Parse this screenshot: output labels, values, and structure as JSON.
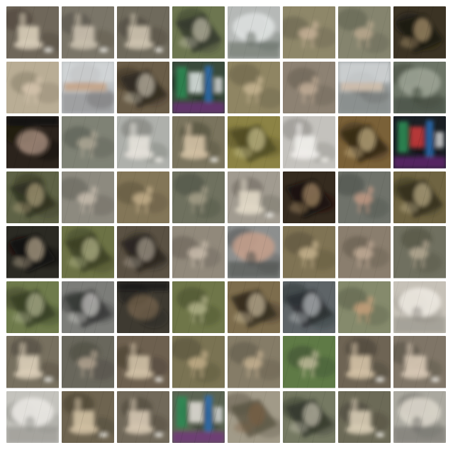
{
  "grid": {
    "rows": 8,
    "cols": 8,
    "tiles": [
      {
        "kind": "chair",
        "bg": "#6f675a",
        "fg": "#d8cdb8",
        "dark": "#3e382f"
      },
      {
        "kind": "chair",
        "bg": "#7a7568",
        "fg": "#c9bfae",
        "dark": "#4b463d"
      },
      {
        "kind": "chair",
        "bg": "#6f6a5c",
        "fg": "#cfc4b0",
        "dark": "#3f3a31"
      },
      {
        "kind": "bird",
        "bg": "#6d7650",
        "fg": "#d7d2bd",
        "dark": "#2f3329"
      },
      {
        "kind": "fog",
        "bg": "#b6b9b7",
        "fg": "#e0e3e2",
        "dark": "#5b6459"
      },
      {
        "kind": "deer",
        "bg": "#8e8769",
        "fg": "#cbb49a",
        "dark": "#5b5646"
      },
      {
        "kind": "deer",
        "bg": "#85846e",
        "fg": "#bba98f",
        "dark": "#535746"
      },
      {
        "kind": "bird",
        "bg": "#3b3324",
        "fg": "#c7ad7f",
        "dark": "#1b1711"
      },
      {
        "kind": "deer",
        "bg": "#b9ad95",
        "fg": "#dccab3",
        "dark": "#7d735f"
      },
      {
        "kind": "boat",
        "bg": "#bcc0c2",
        "fg": "#c7a58a",
        "dark": "#595755"
      },
      {
        "kind": "bird",
        "bg": "#6a5d48",
        "fg": "#dbd3c2",
        "dark": "#2a241c"
      },
      {
        "kind": "colorful",
        "bg": "#3a4a3b",
        "fg": "#d8e0dd",
        "dark": "#111511"
      },
      {
        "kind": "deer",
        "bg": "#8f8563",
        "fg": "#c9b694",
        "dark": "#5e573f"
      },
      {
        "kind": "deer",
        "bg": "#8d8273",
        "fg": "#c6b09a",
        "dark": "#5b5247"
      },
      {
        "kind": "boat",
        "bg": "#9ea3a3",
        "fg": "#d4c2b0",
        "dark": "#5f6261"
      },
      {
        "kind": "fog",
        "bg": "#6c7466",
        "fg": "#9ba293",
        "dark": "#3c4338"
      },
      {
        "kind": "dark",
        "bg": "#2b231c",
        "fg": "#c7aa98",
        "dark": "#120f0c"
      },
      {
        "kind": "deer",
        "bg": "#7f8275",
        "fg": "#b3ab98",
        "dark": "#4c4f46"
      },
      {
        "kind": "chair",
        "bg": "#aeb0ab",
        "fg": "#e6e2da",
        "dark": "#6b6d67"
      },
      {
        "kind": "chair",
        "bg": "#7a745e",
        "fg": "#d3c2a5",
        "dark": "#43402f"
      },
      {
        "kind": "bird",
        "bg": "#8c8345",
        "fg": "#d8d19f",
        "dark": "#4b461f"
      },
      {
        "kind": "chair",
        "bg": "#c4c2bd",
        "fg": "#f1efeb",
        "dark": "#7f7d78"
      },
      {
        "kind": "bird",
        "bg": "#7a6138",
        "fg": "#e0c99a",
        "dark": "#2c2313"
      },
      {
        "kind": "colorful",
        "bg": "#1a1f24",
        "fg": "#c53b3b",
        "dark": "#0a0c0f"
      },
      {
        "kind": "bird",
        "bg": "#5e6246",
        "fg": "#c2b28a",
        "dark": "#2a2b1c"
      },
      {
        "kind": "deer",
        "bg": "#8d8a7f",
        "fg": "#cbbfb0",
        "dark": "#585650"
      },
      {
        "kind": "deer",
        "bg": "#837658",
        "fg": "#c9b48f",
        "dark": "#524934"
      },
      {
        "kind": "deer",
        "bg": "#6f715f",
        "fg": "#a6a08a",
        "dark": "#43463a"
      },
      {
        "kind": "chair",
        "bg": "#a19b90",
        "fg": "#e2d9c8",
        "dark": "#5e594f"
      },
      {
        "kind": "bird",
        "bg": "#352b1f",
        "fg": "#c3a47a",
        "dark": "#150f0a"
      },
      {
        "kind": "deer",
        "bg": "#6f726a",
        "fg": "#c49a84",
        "dark": "#43463f"
      },
      {
        "kind": "bird",
        "bg": "#6f6442",
        "fg": "#d2c39a",
        "dark": "#2f2a1b"
      },
      {
        "kind": "bird",
        "bg": "#2b2a23",
        "fg": "#d8c7aa",
        "dark": "#0f0e0b"
      },
      {
        "kind": "bird",
        "bg": "#6c7245",
        "fg": "#c9ca9d",
        "dark": "#35391f"
      },
      {
        "kind": "bird",
        "bg": "#5a5143",
        "fg": "#bdb3a2",
        "dark": "#26221c"
      },
      {
        "kind": "deer",
        "bg": "#91897b",
        "fg": "#cfc2b1",
        "dark": "#5a554b"
      },
      {
        "kind": "fog",
        "bg": "#8d8f8e",
        "fg": "#c39f8b",
        "dark": "#444746"
      },
      {
        "kind": "deer",
        "bg": "#7f7354",
        "fg": "#cbb791",
        "dark": "#4e4633"
      },
      {
        "kind": "deer",
        "bg": "#8a7e6e",
        "fg": "#c8b19b",
        "dark": "#564d43"
      },
      {
        "kind": "deer",
        "bg": "#707060",
        "fg": "#b9ad96",
        "dark": "#444437"
      },
      {
        "kind": "bird",
        "bg": "#6f7b4c",
        "fg": "#c4c7a2",
        "dark": "#323821"
      },
      {
        "kind": "bird",
        "bg": "#7c7d79",
        "fg": "#e2e1de",
        "dark": "#303130"
      },
      {
        "kind": "dark",
        "bg": "#3e3a31",
        "fg": "#7e6a51",
        "dark": "#1b1915"
      },
      {
        "kind": "deer",
        "bg": "#6f7649",
        "fg": "#b7b78d",
        "dark": "#3c4126"
      },
      {
        "kind": "bird",
        "bg": "#7d6d4d",
        "fg": "#e2d3b3",
        "dark": "#2d261a"
      },
      {
        "kind": "bird",
        "bg": "#5e6467",
        "fg": "#cdd1d2",
        "dark": "#252a2d"
      },
      {
        "kind": "deer",
        "bg": "#858a6c",
        "fg": "#c9a07c",
        "dark": "#4f543f"
      },
      {
        "kind": "fog",
        "bg": "#c6c1b7",
        "fg": "#ece8e0",
        "dark": "#8b8880"
      },
      {
        "kind": "chair",
        "bg": "#77705f",
        "fg": "#dccfb9",
        "dark": "#403b31"
      },
      {
        "kind": "deer",
        "bg": "#69675c",
        "fg": "#b8a894",
        "dark": "#3f3d37"
      },
      {
        "kind": "chair",
        "bg": "#6d604f",
        "fg": "#d2c2a7",
        "dark": "#3a3229"
      },
      {
        "kind": "deer",
        "bg": "#7a7353",
        "fg": "#c6b08b",
        "dark": "#4a4532"
      },
      {
        "kind": "deer",
        "bg": "#857c67",
        "fg": "#c9b494",
        "dark": "#544d40"
      },
      {
        "kind": "deer",
        "bg": "#5f7a46",
        "fg": "#c8c1a1",
        "dark": "#33432a"
      },
      {
        "kind": "chair",
        "bg": "#6e6454",
        "fg": "#d4c2a6",
        "dark": "#3c352b"
      },
      {
        "kind": "chair",
        "bg": "#7f7567",
        "fg": "#d8c9b6",
        "dark": "#4a443b"
      },
      {
        "kind": "fog",
        "bg": "#c4c3bd",
        "fg": "#e9e7e2",
        "dark": "#8c8b85"
      },
      {
        "kind": "chair",
        "bg": "#6e6450",
        "fg": "#d2c1a3",
        "dark": "#3c3529"
      },
      {
        "kind": "chair",
        "bg": "#71695a",
        "fg": "#d6c8b2",
        "dark": "#40392f"
      },
      {
        "kind": "colorful",
        "bg": "#5b6452",
        "fg": "#e0ddd5",
        "dark": "#1d221d"
      },
      {
        "kind": "bird",
        "bg": "#a19a88",
        "fg": "#7a5b3f",
        "dark": "#56503f"
      },
      {
        "kind": "bird",
        "bg": "#757962",
        "fg": "#d7d2c0",
        "dark": "#2f3328"
      },
      {
        "kind": "chair",
        "bg": "#6c6a57",
        "fg": "#d8ccb5",
        "dark": "#3e3c30"
      },
      {
        "kind": "fog",
        "bg": "#aaa89f",
        "fg": "#d9d5ca",
        "dark": "#6e6c66"
      }
    ]
  }
}
